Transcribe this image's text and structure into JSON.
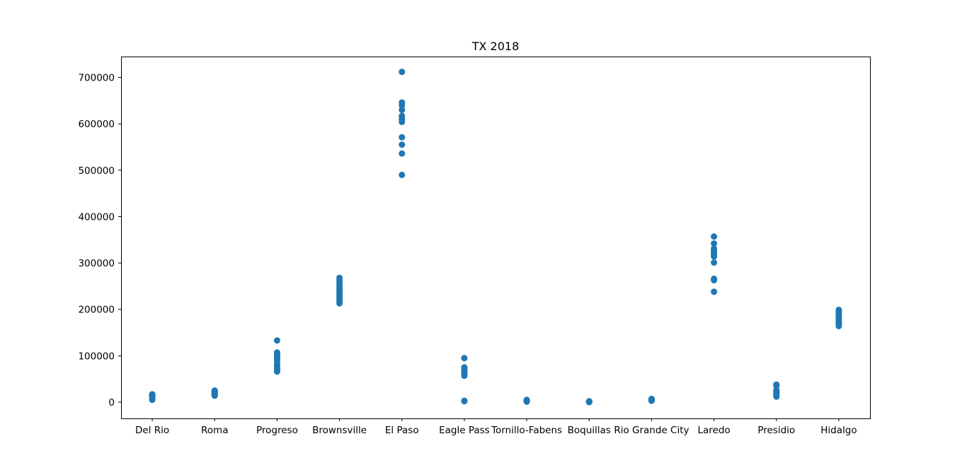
{
  "chart_data": {
    "type": "scatter",
    "title": "TX 2018",
    "xlabel": "",
    "ylabel": "",
    "categories": [
      "Del Rio",
      "Roma",
      "Progreso",
      "Brownsville",
      "El Paso",
      "Eagle Pass",
      "Tornillo-Fabens",
      "Boquillas",
      "Rio Grande City",
      "Laredo",
      "Presidio",
      "Hidalgo"
    ],
    "ylim": [
      -35000,
      745000
    ],
    "yticks": [
      0,
      100000,
      200000,
      300000,
      400000,
      500000,
      600000,
      700000
    ],
    "ytick_labels": [
      "0",
      "100000",
      "200000",
      "300000",
      "400000",
      "500000",
      "600000",
      "700000"
    ],
    "grid": false,
    "marker_color": "#1f77b4",
    "points": [
      {
        "category": "Del Rio",
        "values": [
          5000,
          11000,
          13000,
          15000,
          16000,
          14000,
          17000,
          12000,
          15000,
          13000,
          16000,
          14000
        ]
      },
      {
        "category": "Roma",
        "values": [
          14000,
          16000,
          18000,
          20000,
          22000,
          24000,
          25000,
          19000,
          17000,
          21000,
          23000,
          15000
        ]
      },
      {
        "category": "Progreso",
        "values": [
          133000,
          107000,
          104000,
          96000,
          93000,
          81000,
          78000,
          73000,
          70000,
          66000,
          99000,
          88000
        ]
      },
      {
        "category": "Brownsville",
        "values": [
          268000,
          262000,
          251000,
          246000,
          241000,
          236000,
          230000,
          224000,
          219000,
          213000,
          256000,
          228000
        ]
      },
      {
        "category": "El Paso",
        "values": [
          712000,
          646000,
          640000,
          630000,
          617000,
          610000,
          604000,
          571000,
          555000,
          536000,
          490000
        ]
      },
      {
        "category": "Eagle Pass",
        "values": [
          95000,
          75000,
          72000,
          68000,
          66000,
          62000,
          57000,
          2000,
          3000
        ]
      },
      {
        "category": "Tornillo-Fabens",
        "values": [
          1000,
          2000,
          3000,
          4000,
          2500,
          1500,
          3500,
          5000,
          2000,
          3000
        ]
      },
      {
        "category": "Boquillas",
        "values": [
          0,
          500,
          1000,
          1500,
          2000,
          800,
          1200
        ]
      },
      {
        "category": "Rio Grande City",
        "values": [
          3000,
          4000,
          5000,
          6000,
          7000,
          4500,
          5500,
          6500,
          3500,
          5000
        ]
      },
      {
        "category": "Laredo",
        "values": [
          357000,
          342000,
          331000,
          326000,
          322000,
          318000,
          314000,
          301000,
          266000,
          263000,
          238000
        ]
      },
      {
        "category": "Presidio",
        "values": [
          38000,
          35000,
          26000,
          23000,
          20000,
          18000,
          15000,
          12000,
          22000,
          19000
        ]
      },
      {
        "category": "Hidalgo",
        "values": [
          199000,
          193000,
          188000,
          184000,
          180000,
          176000,
          172000,
          168000,
          164000,
          196000,
          186000,
          170000
        ]
      }
    ]
  }
}
